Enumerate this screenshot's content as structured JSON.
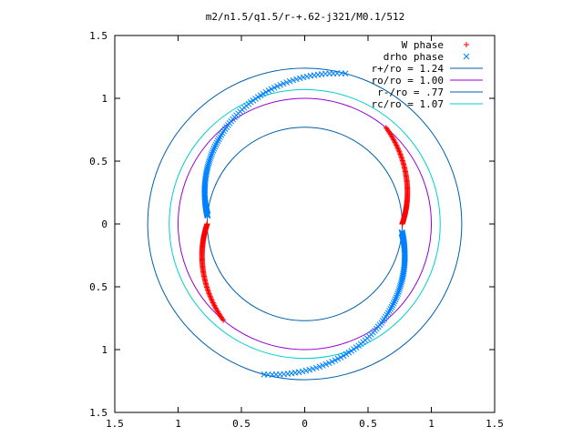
{
  "chart_data": {
    "type": "scatter",
    "title": "m2/n1.5/q1.5/r-+.62-j321/M0.1/512",
    "xlabel": "",
    "ylabel": "",
    "xlim": [
      -1.5,
      1.5
    ],
    "ylim": [
      -1.5,
      1.5
    ],
    "x_tick_values": [
      -1.5,
      -1,
      -0.5,
      0,
      0.5,
      1,
      1.5
    ],
    "y_tick_values": [
      -1.5,
      -1,
      -0.5,
      0,
      0.5,
      1,
      1.5
    ],
    "x_tick_labels": [
      "1.5",
      "1",
      "0.5",
      "0",
      "0.5",
      "1",
      "1.5"
    ],
    "y_tick_labels": [
      "1.5",
      "1",
      "0.5",
      "0",
      "0.5",
      "1",
      "1.5"
    ],
    "grid": false,
    "legend_position": "top-right",
    "series": [
      {
        "name": "W phase",
        "kind": "points",
        "marker": "plus",
        "color": "#ff0000",
        "arms": [
          {
            "r_range": [
              0.77,
              1.0
            ],
            "angle_deg": [
              0,
              50
            ],
            "note": "upper-right arm"
          },
          {
            "r_range": [
              0.77,
              1.0
            ],
            "angle_deg": [
              180,
              230
            ],
            "note": "lower-left arm"
          }
        ]
      },
      {
        "name": "drho phase",
        "kind": "points",
        "marker": "cross",
        "color": "#0080ff",
        "arms": [
          {
            "r_range": [
              0.77,
              1.24
            ],
            "angle_deg": [
              -5,
              -105
            ],
            "note": "right to bottom arm"
          },
          {
            "r_range": [
              0.77,
              1.24
            ],
            "angle_deg": [
              175,
              75
            ],
            "note": "left to top arm"
          }
        ]
      },
      {
        "name": "r+/ro = 1.24",
        "kind": "circle",
        "radius": 1.24,
        "color": "#0060ad"
      },
      {
        "name": "ro/ro = 1.00",
        "kind": "circle",
        "radius": 1.0,
        "color": "#9400d3"
      },
      {
        "name": "r-/ro = .77",
        "kind": "circle",
        "radius": 0.77,
        "color": "#0060ad"
      },
      {
        "name": "rc/ro = 1.07",
        "kind": "circle",
        "radius": 1.07,
        "color": "#00d0d0"
      }
    ]
  }
}
